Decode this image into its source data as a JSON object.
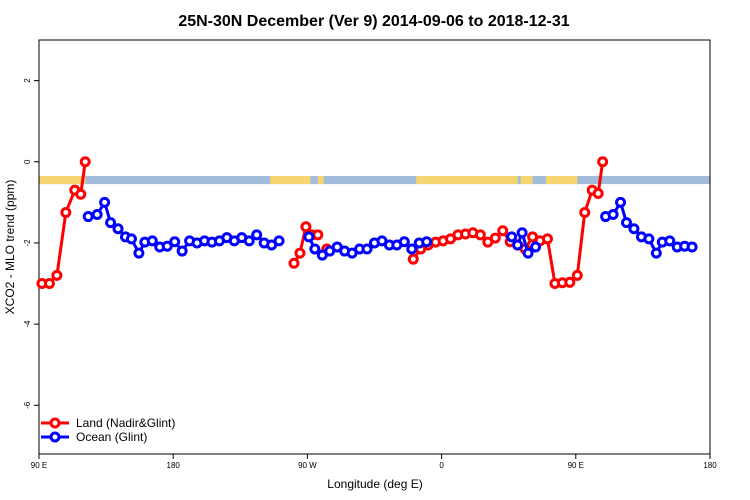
{
  "chart_data": {
    "type": "line",
    "title": "25N-30N December (Ver 9)   2014-09-06 to 2018-12-31",
    "xlabel": "Longitude (deg E)",
    "ylabel": "XCO2 - MLO trend (ppm)",
    "xlim": [
      90,
      540
    ],
    "ylim": [
      -7.2,
      3.0
    ],
    "x_ticks": [
      {
        "value": 90,
        "label": "90 E"
      },
      {
        "value": 180,
        "label": "180"
      },
      {
        "value": 270,
        "label": "90 W"
      },
      {
        "value": 360,
        "label": "0"
      },
      {
        "value": 450,
        "label": "90 E"
      },
      {
        "value": 540,
        "label": "180"
      }
    ],
    "y_ticks": [
      {
        "value": 2,
        "label": "2"
      },
      {
        "value": 0,
        "label": "0"
      },
      {
        "value": -2,
        "label": "-2"
      },
      {
        "value": -4,
        "label": "-4"
      },
      {
        "value": -6,
        "label": "-6"
      }
    ],
    "grid": false,
    "legend_position": "bottom-left",
    "land_ocean_band": {
      "y_range": [
        -0.55,
        -0.35
      ],
      "ocean_color": "#a3bcdb",
      "land_color": "#f5d56f",
      "land_segments": [
        [
          90,
          121
        ],
        [
          245,
          272
        ],
        [
          277,
          281
        ],
        [
          343,
          411
        ],
        [
          413,
          421
        ],
        [
          430,
          451
        ]
      ]
    },
    "series": [
      {
        "name": "Land (Nadir&Glint)",
        "color": "#ff0000",
        "segments": [
          [
            [
              92,
              -3.0
            ],
            [
              97,
              -3.0
            ],
            [
              102,
              -2.8
            ],
            [
              108,
              -1.25
            ],
            [
              114,
              -0.7
            ],
            [
              118,
              -0.8
            ],
            [
              121,
              0.0
            ]
          ],
          [
            [
              261,
              -2.5
            ],
            [
              265,
              -2.25
            ],
            [
              269,
              -1.6
            ],
            [
              273,
              -1.8
            ]
          ],
          [
            [
              277,
              -1.8
            ]
          ],
          [
            [
              283,
              -2.15
            ]
          ],
          [
            [
              341,
              -2.4
            ],
            [
              346,
              -2.15
            ],
            [
              351,
              -2.05
            ],
            [
              356,
              -1.98
            ],
            [
              361,
              -1.95
            ],
            [
              366,
              -1.9
            ],
            [
              371,
              -1.8
            ],
            [
              376,
              -1.78
            ],
            [
              381,
              -1.75
            ],
            [
              386,
              -1.8
            ],
            [
              391,
              -1.98
            ],
            [
              396,
              -1.88
            ]
          ],
          [
            [
              401,
              -1.7
            ],
            [
              406,
              -1.97
            ],
            [
              411,
              -2.05
            ],
            [
              416,
              -2.15
            ],
            [
              421,
              -1.85
            ],
            [
              426,
              -1.95
            ],
            [
              431,
              -1.9
            ],
            [
              436,
              -3.0
            ],
            [
              441,
              -2.98
            ],
            [
              446,
              -2.97
            ],
            [
              451,
              -2.8
            ],
            [
              456,
              -1.25
            ],
            [
              461,
              -0.7
            ],
            [
              465,
              -0.78
            ],
            [
              468,
              0.0
            ]
          ]
        ]
      },
      {
        "name": "Ocean (Glint)",
        "color": "#0000ff",
        "segments": [
          [
            [
              123,
              -1.35
            ],
            [
              129,
              -1.3
            ],
            [
              134,
              -1.0
            ],
            [
              138,
              -1.5
            ],
            [
              143,
              -1.65
            ],
            [
              148,
              -1.85
            ],
            [
              152,
              -1.9
            ],
            [
              157,
              -2.25
            ],
            [
              161,
              -1.98
            ],
            [
              166,
              -1.95
            ],
            [
              171,
              -2.1
            ],
            [
              176,
              -2.08
            ],
            [
              181,
              -1.97
            ],
            [
              186,
              -2.2
            ],
            [
              191,
              -1.95
            ],
            [
              196,
              -2.0
            ],
            [
              201,
              -1.95
            ],
            [
              206,
              -1.98
            ],
            [
              211,
              -1.95
            ],
            [
              216,
              -1.87
            ],
            [
              221,
              -1.95
            ],
            [
              226,
              -1.87
            ],
            [
              231,
              -1.95
            ],
            [
              236,
              -1.8
            ],
            [
              241,
              -2.0
            ],
            [
              246,
              -2.05
            ],
            [
              251,
              -1.95
            ]
          ],
          [
            [
              271,
              -1.85
            ],
            [
              275,
              -2.15
            ],
            [
              280,
              -2.3
            ],
            [
              285,
              -2.2
            ],
            [
              290,
              -2.1
            ],
            [
              295,
              -2.2
            ],
            [
              300,
              -2.25
            ],
            [
              305,
              -2.15
            ],
            [
              310,
              -2.15
            ],
            [
              315,
              -2.0
            ],
            [
              320,
              -1.95
            ],
            [
              325,
              -2.05
            ],
            [
              330,
              -2.05
            ],
            [
              335,
              -1.97
            ],
            [
              340,
              -2.15
            ],
            [
              345,
              -2.0
            ],
            [
              350,
              -1.97
            ]
          ],
          [
            [
              407,
              -1.85
            ],
            [
              411,
              -2.05
            ],
            [
              414,
              -1.75
            ],
            [
              418,
              -2.25
            ],
            [
              423,
              -2.1
            ]
          ],
          [
            [
              470,
              -1.35
            ],
            [
              475,
              -1.3
            ],
            [
              480,
              -1.0
            ],
            [
              484,
              -1.5
            ],
            [
              489,
              -1.65
            ],
            [
              494,
              -1.85
            ],
            [
              499,
              -1.9
            ],
            [
              504,
              -2.25
            ],
            [
              508,
              -1.98
            ],
            [
              513,
              -1.95
            ],
            [
              518,
              -2.1
            ],
            [
              523,
              -2.08
            ],
            [
              528,
              -2.1
            ]
          ]
        ]
      }
    ]
  }
}
